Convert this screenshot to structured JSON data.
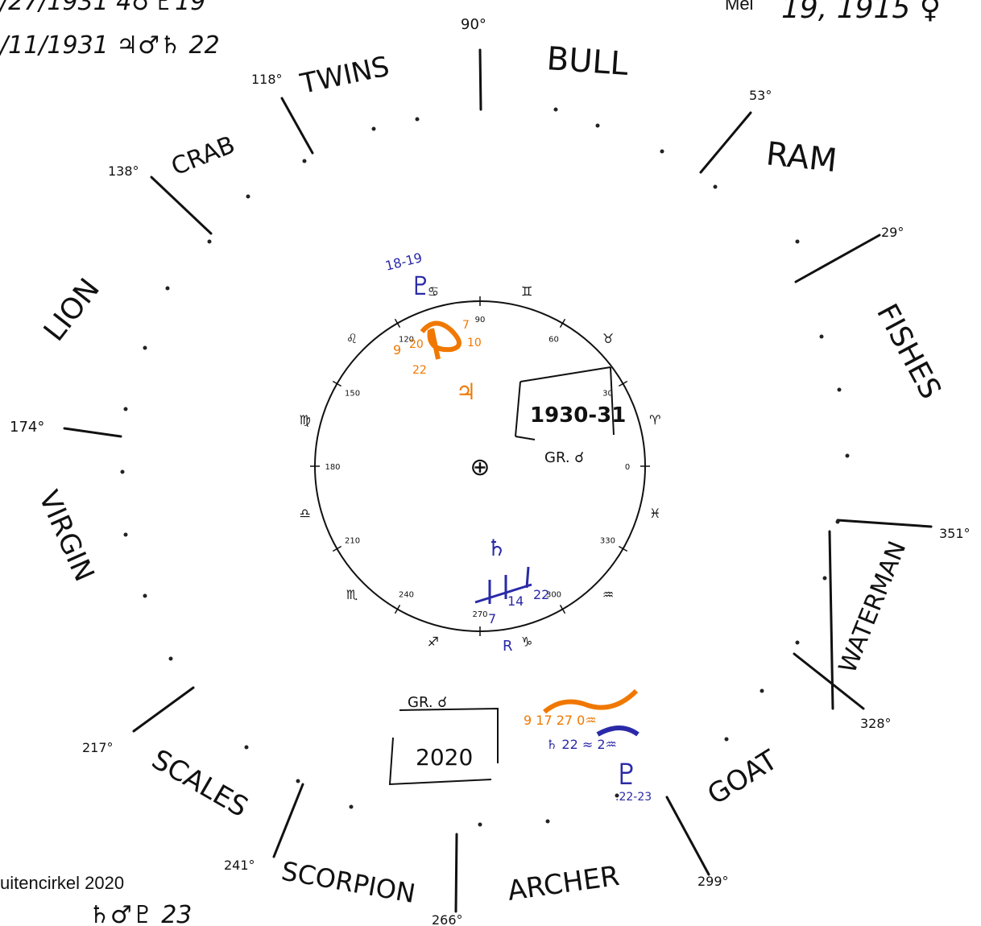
{
  "corner_notes": {
    "top_left_line1": "/27/1931 4♂♇19",
    "top_left_line2": "/11/1931 ♃♂♄ 22",
    "top_right_label": "Mei",
    "top_right_text": "19, 1915 ♀",
    "bottom_left_label": "uitencirkel 2020",
    "bottom_left_text": "♄♂♇ 23"
  },
  "constellations": [
    {
      "name": "BULL"
    },
    {
      "name": "TWINS"
    },
    {
      "name": "CRAB"
    },
    {
      "name": "RAM"
    },
    {
      "name": "FISHES"
    },
    {
      "name": "LION"
    },
    {
      "name": "VIRGIN"
    },
    {
      "name": "WATERMAN"
    },
    {
      "name": "SCALES"
    },
    {
      "name": "GOAT"
    },
    {
      "name": "SCORPION"
    },
    {
      "name": "ARCHER"
    }
  ],
  "boundary_labels": [
    "90°",
    "118°",
    "138°",
    "53°",
    "29°",
    "174°",
    "351°",
    "328°",
    "217°",
    "241°",
    "266°",
    "299°"
  ],
  "inner_circle": {
    "degree_labels": [
      "0",
      "30",
      "60",
      "90",
      "120",
      "150",
      "180",
      "210",
      "240",
      "270",
      "300",
      "330"
    ],
    "sign_glyphs": [
      "♈",
      "♉",
      "♊",
      "♋",
      "♌",
      "♍",
      "♎",
      "♏",
      "♐",
      "♑",
      "♒",
      "♓"
    ],
    "earth_symbol": "⊕"
  },
  "box_1930": {
    "title": "1930-31",
    "caption": "GR. ☌"
  },
  "box_2020": {
    "title": "2020",
    "caption": "GR. ☌"
  },
  "annotations_1930": {
    "pluto_label": "18-19",
    "pluto_glyph": "♇",
    "orange_nums": [
      "9",
      "20",
      "7",
      "10",
      "22"
    ],
    "jupiter_glyph": "♃",
    "saturn_glyph": "♄",
    "blue_nums": [
      "7",
      "14",
      "22"
    ],
    "retro": "R"
  },
  "annotations_2020": {
    "orange_line": "9 17 27 0♒",
    "blue_line": "♄ 22 ≈ 2♒",
    "pluto_glyph": "♇",
    "pluto_num": ".22-23"
  },
  "colors": {
    "ink": "#111111",
    "orange": "#f07800",
    "blue": "#2a2aa8"
  }
}
